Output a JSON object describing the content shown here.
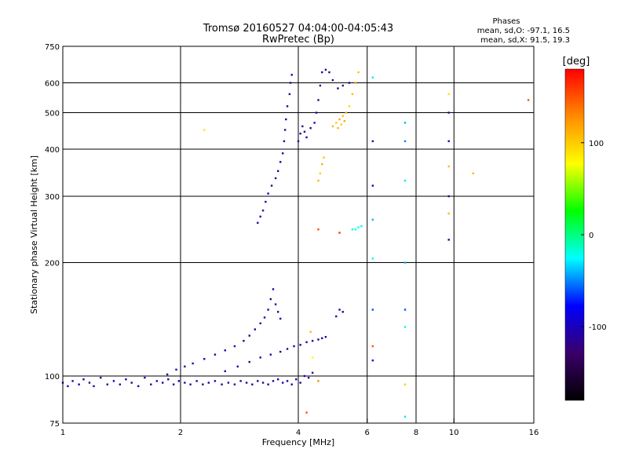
{
  "chart_data": {
    "type": "scatter",
    "title": "Tromsø 20160527 04:04:00-04:05:43",
    "subtitle": "RwPretec (Bp)",
    "xlabel": "Frequency [MHz]",
    "ylabel": "Stationary phase Virtual Height [km]",
    "x_scale": "log",
    "y_scale": "log",
    "xlim": [
      1,
      16
    ],
    "ylim": [
      75,
      750
    ],
    "x_ticks": [
      1,
      2,
      4,
      6,
      8,
      10,
      16
    ],
    "y_ticks": [
      75,
      100,
      200,
      300,
      400,
      500,
      600,
      750
    ],
    "x_gridlines": [
      2,
      4,
      6,
      8,
      10
    ],
    "y_gridlines": [
      100,
      200,
      300,
      400,
      500,
      600
    ],
    "phase_header": "Phases",
    "phase_stats": [
      "mean, sd,O: -97.1, 16.5",
      "mean, sd,X:  91.5, 19.3"
    ],
    "colorbar": {
      "label": "[deg]",
      "range": [
        -180,
        180
      ],
      "ticks": [
        100,
        0,
        -100
      ],
      "colors": [
        "#ff0000",
        "#ff8c00",
        "#ffff00",
        "#00ff00",
        "#00ffff",
        "#0000ff",
        "#3a006a",
        "#000000"
      ]
    },
    "series": [
      {
        "points": [
          [
            1.0,
            96,
            -110
          ],
          [
            1.03,
            94,
            -105
          ],
          [
            1.06,
            97,
            -115
          ],
          [
            1.1,
            95,
            -100
          ],
          [
            1.13,
            98,
            -110
          ],
          [
            1.17,
            96,
            -120
          ],
          [
            1.2,
            94,
            -105
          ],
          [
            1.25,
            99,
            -110
          ],
          [
            1.3,
            95,
            -115
          ],
          [
            1.35,
            97,
            -100
          ],
          [
            1.4,
            95,
            -110
          ],
          [
            1.45,
            98,
            -105
          ],
          [
            1.5,
            96,
            -120
          ],
          [
            1.56,
            94,
            -110
          ],
          [
            1.62,
            99,
            -100
          ],
          [
            1.68,
            95,
            -115
          ],
          [
            1.74,
            97,
            -110
          ],
          [
            1.8,
            96,
            -105
          ],
          [
            1.86,
            98,
            -120
          ],
          [
            1.92,
            95,
            -110
          ],
          [
            1.98,
            97,
            -100
          ],
          [
            2.05,
            96,
            -115
          ],
          [
            2.12,
            95,
            -110
          ],
          [
            2.2,
            97,
            -105
          ],
          [
            2.28,
            95,
            -120
          ],
          [
            2.36,
            96,
            -100
          ],
          [
            2.45,
            97,
            -110
          ],
          [
            2.55,
            95,
            -115
          ],
          [
            2.65,
            96,
            -110
          ],
          [
            2.75,
            95,
            -105
          ],
          [
            2.85,
            97,
            -120
          ],
          [
            2.95,
            96,
            -110
          ],
          [
            3.05,
            95,
            -100
          ],
          [
            3.15,
            97,
            -115
          ],
          [
            3.25,
            96,
            -110
          ],
          [
            3.35,
            95,
            -105
          ],
          [
            3.45,
            97,
            -120
          ],
          [
            3.55,
            98,
            -110
          ],
          [
            3.65,
            96,
            -100
          ],
          [
            3.75,
            97,
            -115
          ],
          [
            3.85,
            95,
            -110
          ],
          [
            3.95,
            98,
            -105
          ],
          [
            4.05,
            96,
            -120
          ],
          [
            4.15,
            100,
            -110
          ],
          [
            4.25,
            99,
            -100
          ],
          [
            4.35,
            102,
            -115
          ]
        ]
      },
      {
        "points": [
          [
            1.85,
            101,
            -110
          ],
          [
            1.95,
            104,
            -105
          ],
          [
            2.05,
            106,
            -115
          ],
          [
            2.15,
            108,
            -110
          ],
          [
            2.3,
            111,
            -100
          ],
          [
            2.45,
            114,
            -120
          ],
          [
            2.6,
            117,
            -110
          ],
          [
            2.75,
            120,
            -105
          ],
          [
            2.9,
            124,
            -115
          ],
          [
            3.0,
            128,
            -110
          ],
          [
            3.1,
            133,
            -100
          ],
          [
            3.2,
            138,
            -120
          ],
          [
            3.28,
            143,
            -110
          ],
          [
            3.35,
            150,
            -105
          ],
          [
            3.4,
            160,
            -115
          ],
          [
            3.45,
            170,
            -110
          ],
          [
            3.5,
            155,
            -100
          ],
          [
            3.55,
            148,
            -120
          ],
          [
            3.6,
            142,
            -110
          ]
        ]
      },
      {
        "points": [
          [
            2.6,
            103,
            -110
          ],
          [
            2.8,
            106,
            -105
          ],
          [
            3.0,
            109,
            -115
          ],
          [
            3.2,
            112,
            -110
          ],
          [
            3.4,
            114,
            -100
          ],
          [
            3.6,
            116,
            -120
          ],
          [
            3.75,
            118,
            -110
          ],
          [
            3.9,
            120,
            -105
          ],
          [
            4.05,
            121,
            -115
          ],
          [
            4.2,
            123,
            -110
          ],
          [
            4.35,
            124,
            -100
          ],
          [
            4.5,
            125,
            -120
          ],
          [
            4.6,
            126,
            -110
          ],
          [
            4.7,
            127,
            -105
          ],
          [
            4.35,
            112,
            80
          ],
          [
            4.3,
            131,
            110
          ],
          [
            5.0,
            144,
            -110
          ],
          [
            5.1,
            150,
            -105
          ],
          [
            5.2,
            148,
            -115
          ]
        ]
      },
      {
        "points": [
          [
            3.15,
            255,
            -110
          ],
          [
            3.2,
            265,
            -105
          ],
          [
            3.25,
            275,
            -115
          ],
          [
            3.3,
            290,
            -110
          ],
          [
            3.35,
            305,
            -100
          ],
          [
            3.42,
            320,
            -120
          ],
          [
            3.5,
            335,
            -110
          ],
          [
            3.55,
            350,
            -105
          ],
          [
            3.6,
            370,
            -115
          ],
          [
            3.65,
            390,
            -110
          ],
          [
            3.68,
            420,
            -100
          ],
          [
            3.7,
            450,
            -120
          ],
          [
            3.72,
            480,
            -110
          ],
          [
            3.75,
            520,
            -105
          ],
          [
            3.8,
            560,
            -115
          ],
          [
            3.82,
            600,
            -110
          ],
          [
            3.85,
            630,
            -100
          ]
        ]
      },
      {
        "points": [
          [
            4.0,
            420,
            -110
          ],
          [
            4.05,
            440,
            -105
          ],
          [
            4.1,
            460,
            -115
          ],
          [
            4.15,
            445,
            -110
          ],
          [
            4.2,
            430,
            -100
          ],
          [
            4.3,
            455,
            -120
          ],
          [
            4.4,
            470,
            -110
          ],
          [
            4.45,
            500,
            -105
          ],
          [
            4.5,
            540,
            -115
          ],
          [
            4.55,
            590,
            -110
          ],
          [
            4.6,
            640,
            -100
          ],
          [
            4.7,
            650,
            -120
          ],
          [
            4.8,
            640,
            -110
          ],
          [
            4.9,
            610,
            -105
          ],
          [
            5.05,
            580,
            -115
          ],
          [
            5.2,
            590,
            -110
          ],
          [
            5.4,
            600,
            -100
          ]
        ]
      },
      {
        "points": [
          [
            4.9,
            460,
            110
          ],
          [
            5.0,
            470,
            100
          ],
          [
            5.1,
            480,
            115
          ],
          [
            5.2,
            490,
            105
          ],
          [
            5.3,
            500,
            110
          ],
          [
            5.4,
            520,
            95
          ],
          [
            5.5,
            560,
            110
          ],
          [
            5.6,
            600,
            120
          ],
          [
            5.7,
            640,
            105
          ],
          [
            5.05,
            455,
            110
          ],
          [
            5.15,
            465,
            100
          ],
          [
            5.25,
            475,
            115
          ],
          [
            4.5,
            330,
            110
          ],
          [
            4.55,
            345,
            100
          ],
          [
            4.6,
            365,
            115
          ],
          [
            4.65,
            380,
            105
          ]
        ]
      },
      {
        "points": [
          [
            5.5,
            245,
            -20
          ],
          [
            5.6,
            245,
            -15
          ],
          [
            5.7,
            248,
            -25
          ],
          [
            5.8,
            250,
            -20
          ],
          [
            6.2,
            620,
            -30
          ],
          [
            6.2,
            420,
            -110
          ],
          [
            6.2,
            320,
            -100
          ],
          [
            6.2,
            260,
            -40
          ],
          [
            6.2,
            205,
            -20
          ],
          [
            6.2,
            150,
            -60
          ],
          [
            6.2,
            120,
            150
          ],
          [
            6.2,
            110,
            -90
          ],
          [
            7.5,
            470,
            -40
          ],
          [
            7.5,
            420,
            -50
          ],
          [
            7.5,
            330,
            -30
          ],
          [
            7.5,
            200,
            -40
          ],
          [
            7.5,
            150,
            -60
          ],
          [
            7.5,
            135,
            -20
          ],
          [
            7.5,
            95,
            100
          ],
          [
            7.5,
            78,
            -30
          ],
          [
            9.7,
            560,
            90
          ],
          [
            9.7,
            500,
            -110
          ],
          [
            9.7,
            420,
            -100
          ],
          [
            9.7,
            360,
            110
          ],
          [
            9.7,
            300,
            -100
          ],
          [
            9.7,
            270,
            110
          ],
          [
            9.7,
            230,
            -110
          ],
          [
            11.2,
            345,
            110
          ],
          [
            15.5,
            540,
            150
          ],
          [
            2.3,
            450,
            90
          ],
          [
            4.5,
            245,
            150
          ],
          [
            5.1,
            240,
            160
          ],
          [
            4.5,
            97,
            130
          ],
          [
            4.2,
            80,
            150
          ]
        ]
      }
    ]
  }
}
